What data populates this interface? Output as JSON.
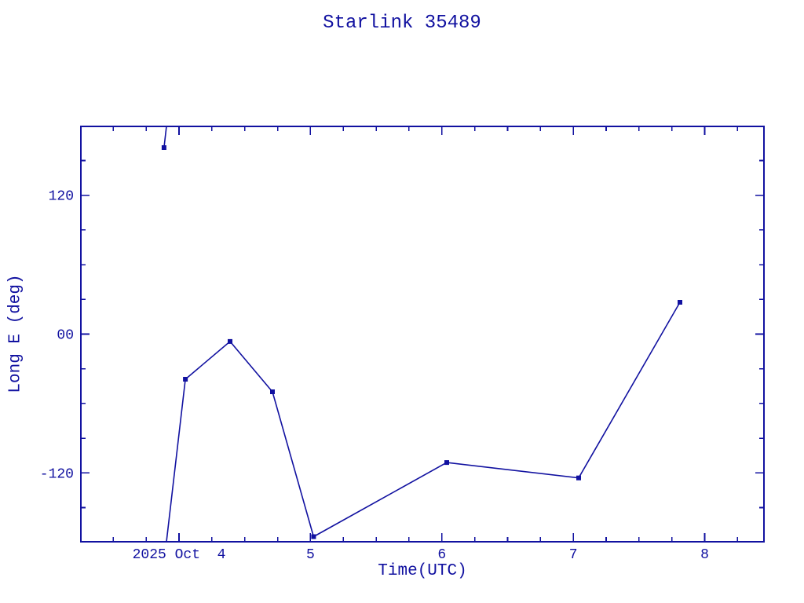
{
  "title": "Starlink 35489",
  "colors": {
    "ink": "#1111a0",
    "background": "#ffffff"
  },
  "chart_data": {
    "type": "line",
    "title": "Starlink 35489",
    "xlabel": "Time(UTC)",
    "ylabel": "Long E (deg)",
    "x_axis_note": "day of 2025 October (UTC)",
    "xlim": [
      3.253,
      8.451
    ],
    "ylim": [
      -179.5,
      179.5
    ],
    "grid": false,
    "legend": "none",
    "x_major_ticks": [
      {
        "value": 4,
        "label": "2025 Oct  4"
      },
      {
        "value": 5,
        "label": "5"
      },
      {
        "value": 6,
        "label": "6"
      },
      {
        "value": 7,
        "label": "7"
      },
      {
        "value": 8,
        "label": "8"
      }
    ],
    "x_minor_tick_step": 0.25,
    "y_major_ticks": [
      {
        "value": 120,
        "label": "120"
      },
      {
        "value": 0,
        "label": "00"
      },
      {
        "value": -120,
        "label": "-120"
      }
    ],
    "y_minor_tick_step": 30,
    "series": [
      {
        "name": "Long E",
        "marker": "filled-square",
        "points": [
          [
            3.886,
            161.2
          ],
          [
            4.048,
            -39.0
          ],
          [
            4.388,
            -6.4
          ],
          [
            4.711,
            -49.9
          ],
          [
            5.024,
            -175.1
          ],
          [
            6.037,
            -111.0
          ],
          [
            7.041,
            -124.3
          ],
          [
            7.812,
            27.5
          ]
        ],
        "wrap_crossing_day": 3.904,
        "segments": [
          [
            [
              3.886,
              161.2
            ],
            [
              3.904,
              179.5
            ]
          ],
          [
            [
              3.904,
              -179.5
            ],
            [
              4.048,
              -39.0
            ],
            [
              4.388,
              -6.4
            ],
            [
              4.711,
              -49.9
            ],
            [
              5.024,
              -175.1
            ],
            [
              6.037,
              -111.0
            ],
            [
              7.041,
              -124.3
            ],
            [
              7.812,
              27.5
            ]
          ]
        ]
      }
    ]
  }
}
